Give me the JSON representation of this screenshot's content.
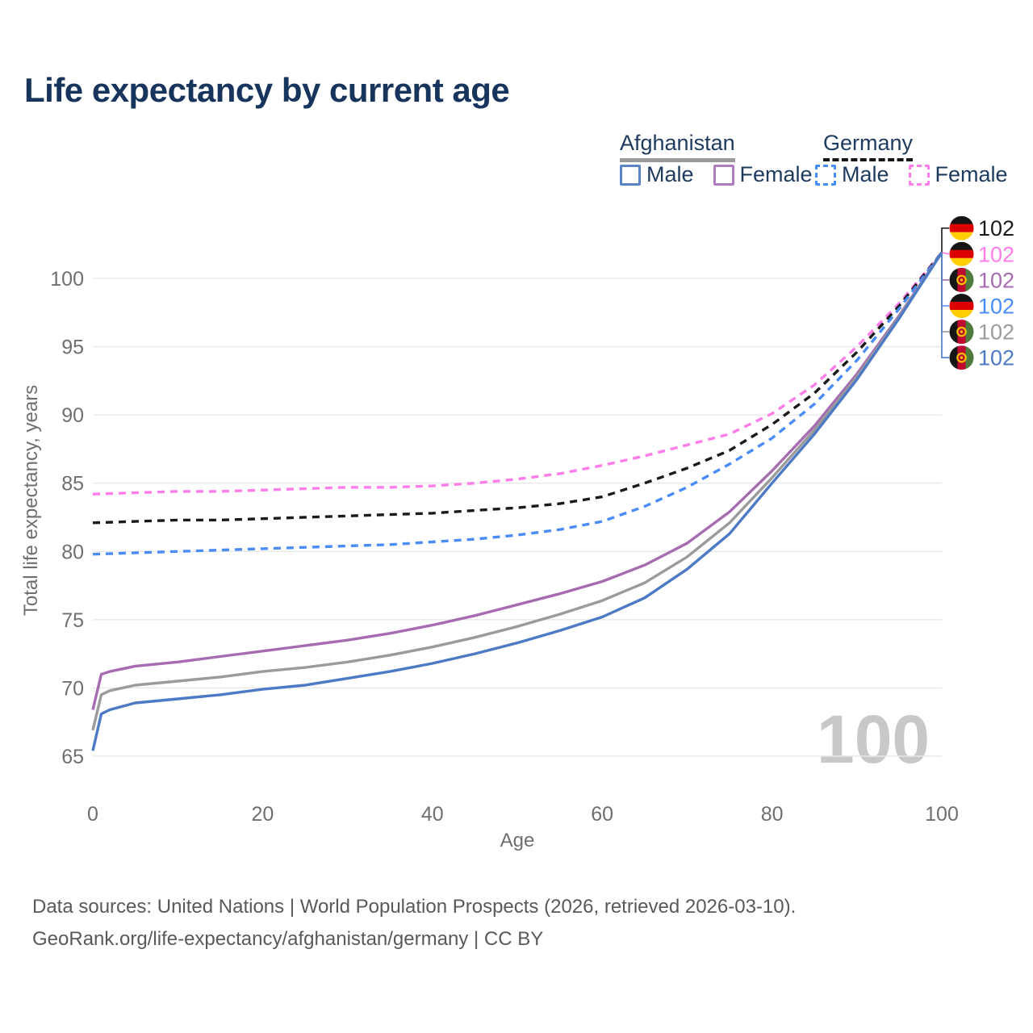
{
  "title": "Life expectancy by current age",
  "legend": {
    "afghanistan": {
      "label": "Afghanistan",
      "male": "Male",
      "female": "Female"
    },
    "germany": {
      "label": "Germany",
      "male": "Male",
      "female": "Female"
    }
  },
  "watermark": "100",
  "footer": {
    "line1": "Data sources: United Nations | World Population Prospects (2026, retrieved 2026-03-10).",
    "line2": "GeoRank.org/life-expectancy/afghanistan/germany | CC BY"
  },
  "colors": {
    "title": "#17345c",
    "afghanistan_male": "#4d7ac4",
    "afghanistan_female": "#a66bb0",
    "afghanistan_total": "#9b9b9b",
    "germany_male": "#4a8cf7",
    "germany_female": "#ff7de9",
    "germany_total": "#1a1a1a",
    "grid": "#e8e8e8",
    "axis_text": "#6f6f6f",
    "watermark": "#c8c8c8"
  },
  "chart_data": {
    "type": "line",
    "title": "Life expectancy by current age",
    "xlabel": "Age",
    "ylabel": "Total life expectancy, years",
    "xlim": [
      0,
      100
    ],
    "ylim": [
      65,
      102.5
    ],
    "x_ticks": [
      0,
      20,
      40,
      60,
      80,
      100
    ],
    "y_ticks": [
      100,
      95,
      90,
      85,
      80,
      75,
      70,
      65
    ],
    "grid": "horizontal-only",
    "legend_position": "top-right",
    "series": [
      {
        "name": "Germany Female",
        "country": "Germany",
        "sex": "Female",
        "style": "dashed",
        "color": "#ff7de9",
        "points": [
          [
            0,
            84.2
          ],
          [
            5,
            84.3
          ],
          [
            10,
            84.4
          ],
          [
            15,
            84.4
          ],
          [
            20,
            84.5
          ],
          [
            25,
            84.6
          ],
          [
            30,
            84.7
          ],
          [
            35,
            84.7
          ],
          [
            40,
            84.8
          ],
          [
            45,
            85.0
          ],
          [
            50,
            85.3
          ],
          [
            55,
            85.7
          ],
          [
            60,
            86.3
          ],
          [
            65,
            87.0
          ],
          [
            70,
            87.8
          ],
          [
            75,
            88.6
          ],
          [
            80,
            90.1
          ],
          [
            85,
            92.2
          ],
          [
            90,
            95.0
          ],
          [
            95,
            98.2
          ],
          [
            100,
            101.9
          ]
        ]
      },
      {
        "name": "Germany Total",
        "country": "Germany",
        "sex": "Both",
        "style": "dashed",
        "color": "#1a1a1a",
        "points": [
          [
            0,
            82.1
          ],
          [
            5,
            82.2
          ],
          [
            10,
            82.3
          ],
          [
            15,
            82.3
          ],
          [
            20,
            82.4
          ],
          [
            25,
            82.5
          ],
          [
            30,
            82.6
          ],
          [
            35,
            82.7
          ],
          [
            40,
            82.8
          ],
          [
            45,
            83.0
          ],
          [
            50,
            83.2
          ],
          [
            55,
            83.5
          ],
          [
            60,
            84.0
          ],
          [
            65,
            85.0
          ],
          [
            70,
            86.1
          ],
          [
            75,
            87.4
          ],
          [
            80,
            89.3
          ],
          [
            85,
            91.6
          ],
          [
            90,
            94.6
          ],
          [
            95,
            98.0
          ],
          [
            100,
            101.9
          ]
        ]
      },
      {
        "name": "Germany Male",
        "country": "Germany",
        "sex": "Male",
        "style": "dashed",
        "color": "#4a8cf7",
        "points": [
          [
            0,
            79.8
          ],
          [
            5,
            79.9
          ],
          [
            10,
            80.0
          ],
          [
            15,
            80.1
          ],
          [
            20,
            80.2
          ],
          [
            25,
            80.3
          ],
          [
            30,
            80.4
          ],
          [
            35,
            80.5
          ],
          [
            40,
            80.7
          ],
          [
            45,
            80.9
          ],
          [
            50,
            81.2
          ],
          [
            55,
            81.6
          ],
          [
            60,
            82.2
          ],
          [
            65,
            83.3
          ],
          [
            70,
            84.7
          ],
          [
            75,
            86.4
          ],
          [
            80,
            88.3
          ],
          [
            85,
            90.8
          ],
          [
            90,
            94.0
          ],
          [
            95,
            97.8
          ],
          [
            100,
            101.9
          ]
        ]
      },
      {
        "name": "Afghanistan Female",
        "country": "Afghanistan",
        "sex": "Female",
        "style": "solid",
        "color": "#a66bb0",
        "points": [
          [
            0,
            68.4
          ],
          [
            1,
            71.0
          ],
          [
            2,
            71.2
          ],
          [
            5,
            71.6
          ],
          [
            10,
            71.9
          ],
          [
            15,
            72.3
          ],
          [
            20,
            72.7
          ],
          [
            25,
            73.1
          ],
          [
            30,
            73.5
          ],
          [
            35,
            74.0
          ],
          [
            40,
            74.6
          ],
          [
            45,
            75.3
          ],
          [
            50,
            76.1
          ],
          [
            55,
            76.9
          ],
          [
            60,
            77.8
          ],
          [
            65,
            79.0
          ],
          [
            70,
            80.6
          ],
          [
            75,
            82.9
          ],
          [
            80,
            85.9
          ],
          [
            85,
            89.2
          ],
          [
            90,
            93.0
          ],
          [
            95,
            97.3
          ],
          [
            100,
            101.9
          ]
        ]
      },
      {
        "name": "Afghanistan Total",
        "country": "Afghanistan",
        "sex": "Both",
        "style": "solid",
        "color": "#9b9b9b",
        "points": [
          [
            0,
            66.9
          ],
          [
            1,
            69.5
          ],
          [
            2,
            69.8
          ],
          [
            5,
            70.2
          ],
          [
            10,
            70.5
          ],
          [
            15,
            70.8
          ],
          [
            20,
            71.2
          ],
          [
            25,
            71.5
          ],
          [
            30,
            71.9
          ],
          [
            35,
            72.4
          ],
          [
            40,
            73.0
          ],
          [
            45,
            73.7
          ],
          [
            50,
            74.5
          ],
          [
            55,
            75.4
          ],
          [
            60,
            76.4
          ],
          [
            65,
            77.7
          ],
          [
            70,
            79.6
          ],
          [
            75,
            82.1
          ],
          [
            80,
            85.4
          ],
          [
            85,
            88.9
          ],
          [
            90,
            92.8
          ],
          [
            95,
            97.2
          ],
          [
            100,
            101.9
          ]
        ]
      },
      {
        "name": "Afghanistan Male",
        "country": "Afghanistan",
        "sex": "Male",
        "style": "solid",
        "color": "#4d7ac4",
        "points": [
          [
            0,
            65.4
          ],
          [
            1,
            68.1
          ],
          [
            2,
            68.4
          ],
          [
            5,
            68.9
          ],
          [
            10,
            69.2
          ],
          [
            15,
            69.5
          ],
          [
            20,
            69.9
          ],
          [
            25,
            70.2
          ],
          [
            30,
            70.7
          ],
          [
            35,
            71.2
          ],
          [
            40,
            71.8
          ],
          [
            45,
            72.5
          ],
          [
            50,
            73.3
          ],
          [
            55,
            74.2
          ],
          [
            60,
            75.2
          ],
          [
            65,
            76.6
          ],
          [
            70,
            78.7
          ],
          [
            75,
            81.3
          ],
          [
            80,
            85.0
          ],
          [
            85,
            88.6
          ],
          [
            90,
            92.6
          ],
          [
            95,
            97.1
          ],
          [
            100,
            101.9
          ]
        ]
      }
    ]
  },
  "end_labels": [
    {
      "series": "Germany Total",
      "flag": "germany",
      "value": "102",
      "color": "#1a1a1a"
    },
    {
      "series": "Germany Female",
      "flag": "germany",
      "value": "102",
      "color": "#ff7de9"
    },
    {
      "series": "Afghanistan Female",
      "flag": "afghanistan",
      "value": "102",
      "color": "#a66bb0"
    },
    {
      "series": "Germany Male",
      "flag": "germany",
      "value": "102",
      "color": "#4a8cf7"
    },
    {
      "series": "Afghanistan Total",
      "flag": "afghanistan",
      "value": "102",
      "color": "#9b9b9b"
    },
    {
      "series": "Afghanistan Male",
      "flag": "afghanistan",
      "value": "102",
      "color": "#4d7ac4"
    }
  ],
  "flag_colors": {
    "germany": {
      "black": "#151515",
      "red": "#dd0000",
      "gold": "#ffce00"
    },
    "afghanistan": {
      "black": "#151515",
      "red": "#bf0a30",
      "green": "#4e7a3d",
      "emblem": "#f5c400"
    }
  }
}
